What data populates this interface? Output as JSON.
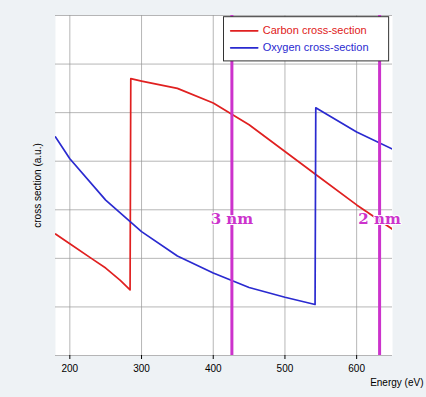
{
  "chart_data": {
    "type": "line",
    "xlabel": "Energy (eV)",
    "ylabel": "cross section (a.u.)",
    "xlim": [
      180,
      650
    ],
    "xticks": [
      200,
      300,
      400,
      500,
      600
    ],
    "ylim": [
      0,
      7
    ],
    "yticks": [
      0,
      1,
      2,
      3,
      4,
      5,
      6,
      7
    ],
    "grid": true,
    "tick_labels": "x",
    "legend": "top-right",
    "series": [
      {
        "name": "Carbon cross-section",
        "color": "#e02020",
        "x": [
          180,
          200,
          230,
          250,
          270,
          284,
          285,
          300,
          350,
          400,
          450,
          500,
          550,
          600,
          650
        ],
        "values": [
          2.5,
          2.3,
          2.0,
          1.8,
          1.55,
          1.35,
          5.7,
          5.65,
          5.5,
          5.2,
          4.75,
          4.2,
          3.65,
          3.1,
          2.6
        ]
      },
      {
        "name": "Oxygen cross-section",
        "color": "#2a2ad0",
        "x": [
          180,
          200,
          250,
          300,
          350,
          400,
          450,
          500,
          542,
          543,
          560,
          600,
          650
        ],
        "values": [
          4.5,
          4.05,
          3.2,
          2.55,
          2.05,
          1.7,
          1.4,
          1.2,
          1.05,
          5.1,
          4.95,
          4.6,
          4.25
        ]
      }
    ],
    "annotations": [
      {
        "x": 426,
        "label": "3 nm",
        "color": "#cc33cc"
      },
      {
        "x": 632,
        "label": "2 nm",
        "color": "#cc33cc"
      }
    ]
  }
}
